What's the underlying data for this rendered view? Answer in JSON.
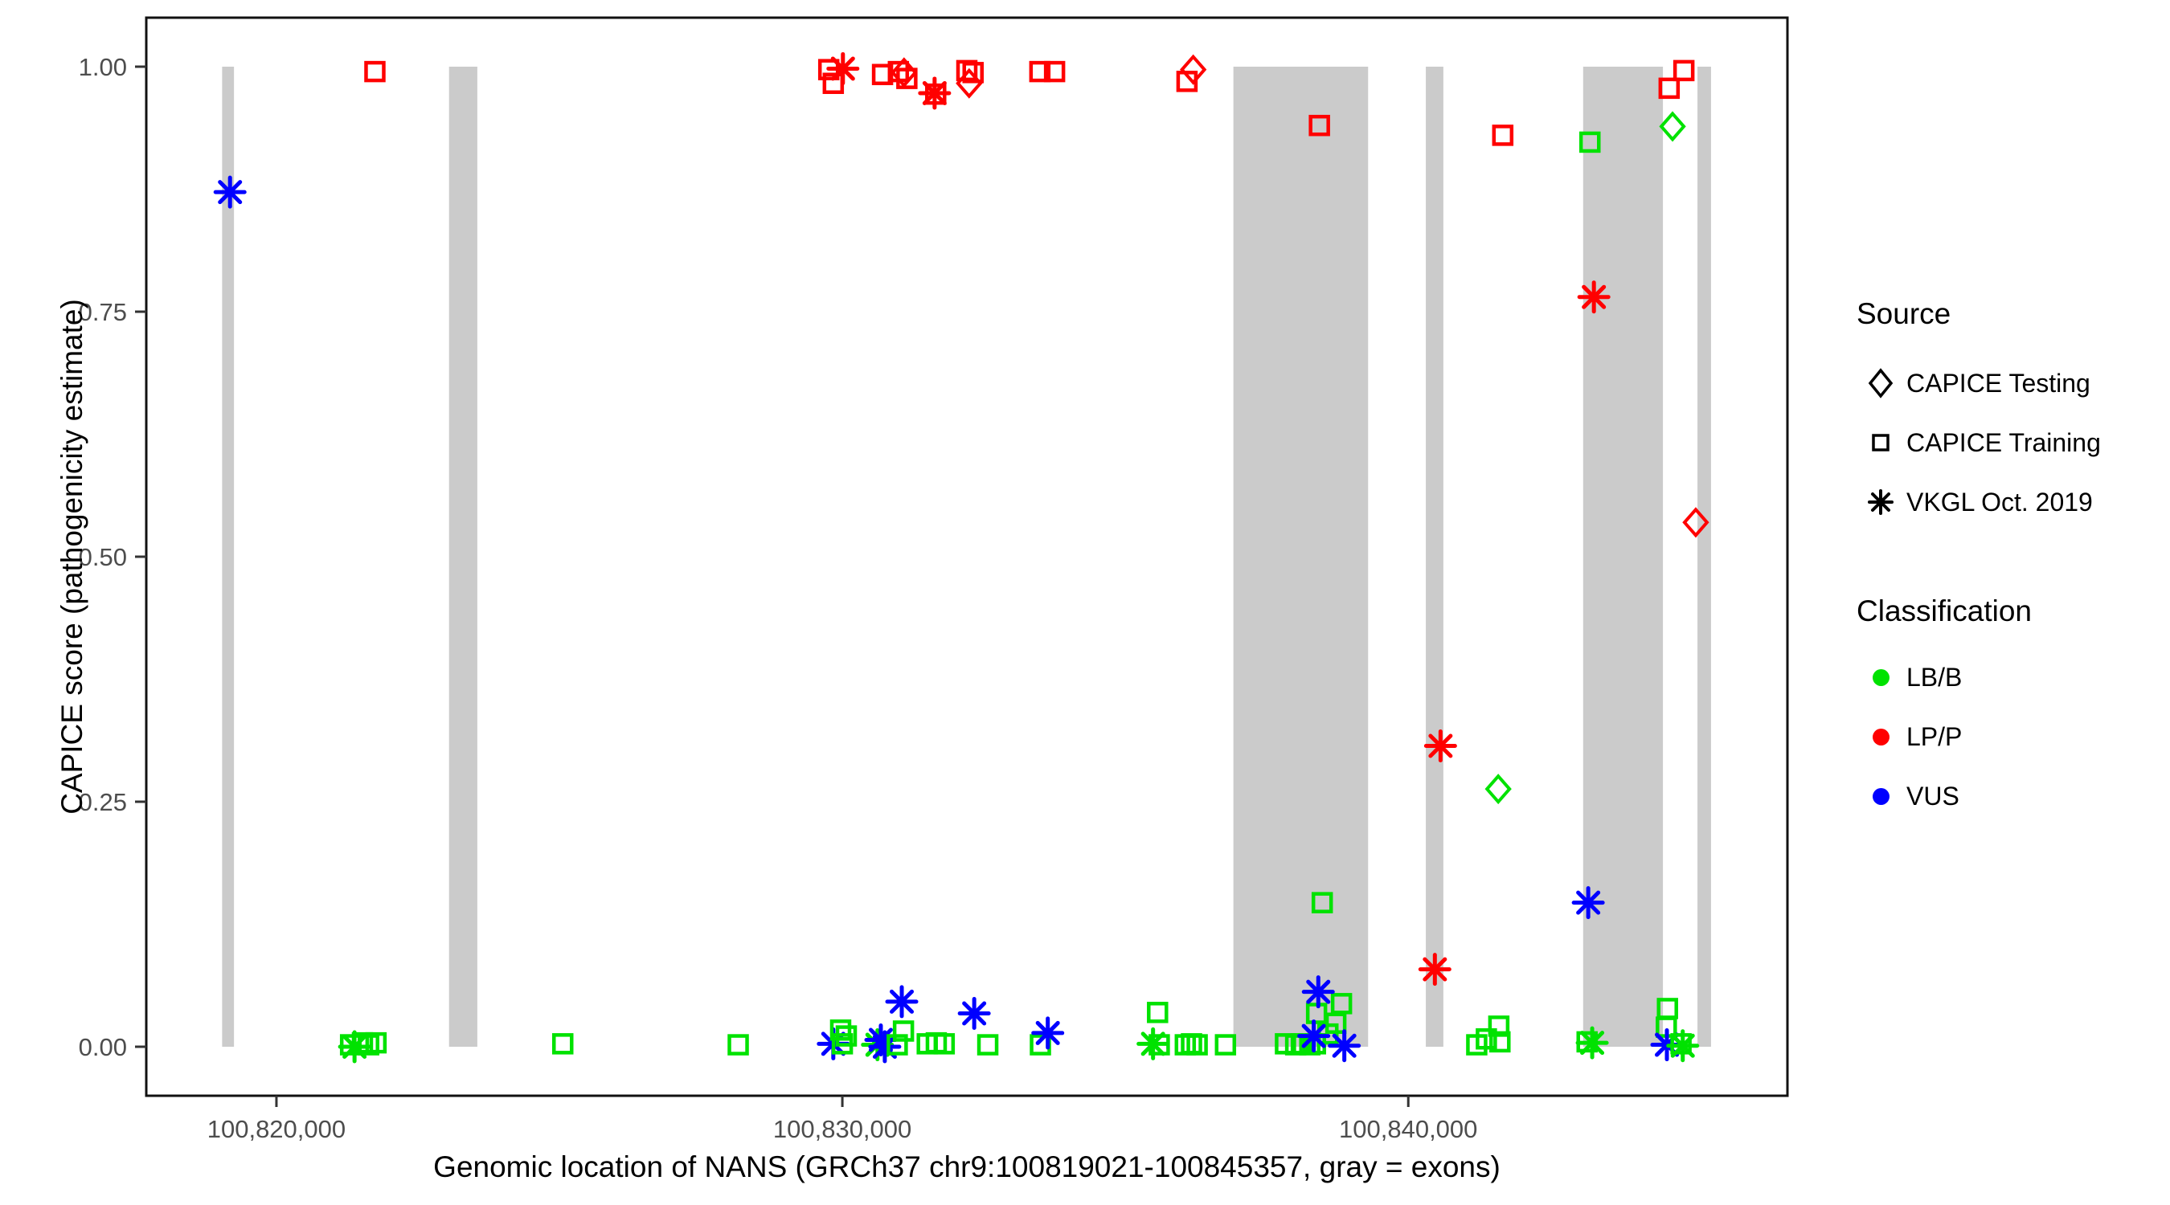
{
  "colors": {
    "lbb": "#00e200",
    "lpp": "#ff0000",
    "vus": "#0000ff",
    "exon": "#cbcbcb",
    "axis_text": "#4d4d4d",
    "border": "#111111"
  },
  "legend": {
    "source": {
      "title": "Source",
      "items": [
        {
          "label": "CAPICE Testing",
          "shape": "diamond"
        },
        {
          "label": "CAPICE Training",
          "shape": "square"
        },
        {
          "label": "VKGL Oct. 2019",
          "shape": "asterisk"
        }
      ]
    },
    "classification": {
      "title": "Classification",
      "items": [
        {
          "label": "LB/B",
          "color": "#00e200"
        },
        {
          "label": "LP/P",
          "color": "#ff0000"
        },
        {
          "label": "VUS",
          "color": "#0000ff"
        }
      ]
    }
  },
  "chart_data": {
    "type": "scatter",
    "title": "",
    "xlabel": "Genomic location of NANS (GRCh37 chr9:100819021-100845357, gray = exons)",
    "ylabel": "CAPICE score (pathogenicity estimate)",
    "xlim": [
      100817700,
      100846700
    ],
    "ylim": [
      -0.05,
      1.05
    ],
    "x_ticks": [
      {
        "value": 100820000,
        "label": "100,820,000"
      },
      {
        "value": 100830000,
        "label": "100,830,000"
      },
      {
        "value": 100840000,
        "label": "100,840,000"
      }
    ],
    "y_ticks": [
      {
        "value": 0.0,
        "label": "0.00"
      },
      {
        "value": 0.25,
        "label": "0.25"
      },
      {
        "value": 0.5,
        "label": "0.50"
      },
      {
        "value": 0.75,
        "label": "0.75"
      },
      {
        "value": 1.0,
        "label": "1.00"
      }
    ],
    "exon_regions": [
      [
        100819040,
        100819250
      ],
      [
        100823050,
        100823550
      ],
      [
        100836910,
        100839290
      ],
      [
        100840310,
        100840620
      ],
      [
        100843090,
        100844500
      ],
      [
        100845110,
        100845350
      ]
    ],
    "point_format": [
      "genomic_position",
      "capice_score",
      "source",
      "classification"
    ],
    "points": [
      [
        100819180,
        0.872,
        "VKGL Oct. 2019",
        "VUS"
      ],
      [
        100821740,
        0.995,
        "CAPICE Training",
        "LP/P"
      ],
      [
        100829760,
        0.997,
        "CAPICE Training",
        "LP/P"
      ],
      [
        100830010,
        0.998,
        "VKGL Oct. 2019",
        "LP/P"
      ],
      [
        100829840,
        0.983,
        "CAPICE Training",
        "LP/P"
      ],
      [
        100830710,
        0.992,
        "CAPICE Training",
        "LP/P"
      ],
      [
        100830990,
        0.995,
        "CAPICE Training",
        "LP/P"
      ],
      [
        100831090,
        0.994,
        "CAPICE Testing",
        "LP/P"
      ],
      [
        100831140,
        0.988,
        "CAPICE Training",
        "LP/P"
      ],
      [
        100831630,
        0.973,
        "VKGL Oct. 2019",
        "LP/P"
      ],
      [
        100831650,
        0.972,
        "CAPICE Training",
        "LP/P"
      ],
      [
        100832200,
        0.996,
        "CAPICE Training",
        "LP/P"
      ],
      [
        100832310,
        0.994,
        "CAPICE Training",
        "LP/P"
      ],
      [
        100832240,
        0.983,
        "CAPICE Testing",
        "LP/P"
      ],
      [
        100833490,
        0.995,
        "CAPICE Training",
        "LP/P"
      ],
      [
        100833750,
        0.995,
        "CAPICE Training",
        "LP/P"
      ],
      [
        100836200,
        0.997,
        "CAPICE Testing",
        "LP/P"
      ],
      [
        100836090,
        0.985,
        "CAPICE Training",
        "LP/P"
      ],
      [
        100838430,
        0.94,
        "CAPICE Training",
        "LP/P"
      ],
      [
        100841670,
        0.93,
        "CAPICE Training",
        "LP/P"
      ],
      [
        100844870,
        0.996,
        "CAPICE Training",
        "LP/P"
      ],
      [
        100844610,
        0.978,
        "CAPICE Training",
        "LP/P"
      ],
      [
        100845080,
        0.535,
        "CAPICE Testing",
        "LP/P"
      ],
      [
        100843280,
        0.765,
        "VKGL Oct. 2019",
        "LP/P"
      ],
      [
        100840570,
        0.307,
        "VKGL Oct. 2019",
        "LP/P"
      ],
      [
        100840470,
        0.079,
        "VKGL Oct. 2019",
        "LP/P"
      ],
      [
        100843210,
        0.923,
        "CAPICE Training",
        "LB/B"
      ],
      [
        100844670,
        0.939,
        "CAPICE Testing",
        "LB/B"
      ],
      [
        100841590,
        0.263,
        "CAPICE Testing",
        "LB/B"
      ],
      [
        100838480,
        0.147,
        "CAPICE Training",
        "LB/B"
      ],
      [
        100843180,
        0.147,
        "VKGL Oct. 2019",
        "VUS"
      ],
      [
        100821310,
        0.002,
        "CAPICE Training",
        "LB/B"
      ],
      [
        100821380,
        0.0,
        "VKGL Oct. 2019",
        "LB/B"
      ],
      [
        100821520,
        0.004,
        "CAPICE Training",
        "LB/B"
      ],
      [
        100821630,
        0.002,
        "CAPICE Training",
        "LB/B"
      ],
      [
        100821760,
        0.004,
        "CAPICE Training",
        "LB/B"
      ],
      [
        100825060,
        0.003,
        "CAPICE Training",
        "LB/B"
      ],
      [
        100828160,
        0.002,
        "CAPICE Training",
        "LB/B"
      ],
      [
        100829840,
        0.003,
        "VKGL Oct. 2019",
        "VUS"
      ],
      [
        100829970,
        0.017,
        "CAPICE Training",
        "LB/B"
      ],
      [
        100830070,
        0.011,
        "CAPICE Training",
        "LB/B"
      ],
      [
        100830000,
        0.003,
        "CAPICE Training",
        "LB/B"
      ],
      [
        100830620,
        0.002,
        "VKGL Oct. 2019",
        "LB/B"
      ],
      [
        100830680,
        0.007,
        "VKGL Oct. 2019",
        "VUS"
      ],
      [
        100830750,
        0.0,
        "VKGL Oct. 2019",
        "VUS"
      ],
      [
        100830970,
        0.002,
        "CAPICE Training",
        "LB/B"
      ],
      [
        100831080,
        0.016,
        "CAPICE Training",
        "LB/B"
      ],
      [
        100831050,
        0.046,
        "VKGL Oct. 2019",
        "VUS"
      ],
      [
        100831500,
        0.003,
        "CAPICE Training",
        "LB/B"
      ],
      [
        100831660,
        0.004,
        "CAPICE Training",
        "LB/B"
      ],
      [
        100831800,
        0.003,
        "CAPICE Training",
        "LB/B"
      ],
      [
        100832330,
        0.034,
        "VKGL Oct. 2019",
        "VUS"
      ],
      [
        100832570,
        0.002,
        "CAPICE Training",
        "LB/B"
      ],
      [
        100833500,
        0.002,
        "CAPICE Training",
        "LB/B"
      ],
      [
        100833630,
        0.014,
        "VKGL Oct. 2019",
        "VUS"
      ],
      [
        100835490,
        0.003,
        "VKGL Oct. 2019",
        "LB/B"
      ],
      [
        100835570,
        0.035,
        "CAPICE Training",
        "LB/B"
      ],
      [
        100835600,
        0.002,
        "CAPICE Training",
        "LB/B"
      ],
      [
        100836060,
        0.002,
        "CAPICE Training",
        "LB/B"
      ],
      [
        100836170,
        0.003,
        "CAPICE Training",
        "LB/B"
      ],
      [
        100836270,
        0.002,
        "CAPICE Training",
        "LB/B"
      ],
      [
        100836770,
        0.002,
        "CAPICE Training",
        "LB/B"
      ],
      [
        100837830,
        0.003,
        "CAPICE Training",
        "LB/B"
      ],
      [
        100838010,
        0.002,
        "CAPICE Training",
        "LB/B"
      ],
      [
        100838110,
        0.003,
        "CAPICE Training",
        "LB/B"
      ],
      [
        100838260,
        0.002,
        "CAPICE Training",
        "LB/B"
      ],
      [
        100838360,
        0.003,
        "CAPICE Training",
        "LB/B"
      ],
      [
        100838380,
        0.034,
        "CAPICE Training",
        "LB/B"
      ],
      [
        100838580,
        0.013,
        "CAPICE Training",
        "LB/B"
      ],
      [
        100838720,
        0.024,
        "CAPICE Training",
        "LB/B"
      ],
      [
        100838820,
        0.044,
        "CAPICE Training",
        "LB/B"
      ],
      [
        100838330,
        0.011,
        "VKGL Oct. 2019",
        "VUS"
      ],
      [
        100838410,
        0.056,
        "VKGL Oct. 2019",
        "VUS"
      ],
      [
        100838870,
        0.001,
        "VKGL Oct. 2019",
        "VUS"
      ],
      [
        100841210,
        0.002,
        "CAPICE Training",
        "LB/B"
      ],
      [
        100841380,
        0.008,
        "CAPICE Training",
        "LB/B"
      ],
      [
        100841600,
        0.021,
        "CAPICE Training",
        "LB/B"
      ],
      [
        100841620,
        0.005,
        "CAPICE Training",
        "LB/B"
      ],
      [
        100843160,
        0.005,
        "CAPICE Training",
        "LB/B"
      ],
      [
        100843250,
        0.004,
        "VKGL Oct. 2019",
        "LB/B"
      ],
      [
        100844580,
        0.039,
        "CAPICE Training",
        "LB/B"
      ],
      [
        100844560,
        0.02,
        "CAPICE Training",
        "LB/B"
      ],
      [
        100844570,
        0.002,
        "VKGL Oct. 2019",
        "VUS"
      ],
      [
        100844820,
        0.003,
        "CAPICE Training",
        "LB/B"
      ],
      [
        100844850,
        0.001,
        "VKGL Oct. 2019",
        "LB/B"
      ]
    ]
  }
}
